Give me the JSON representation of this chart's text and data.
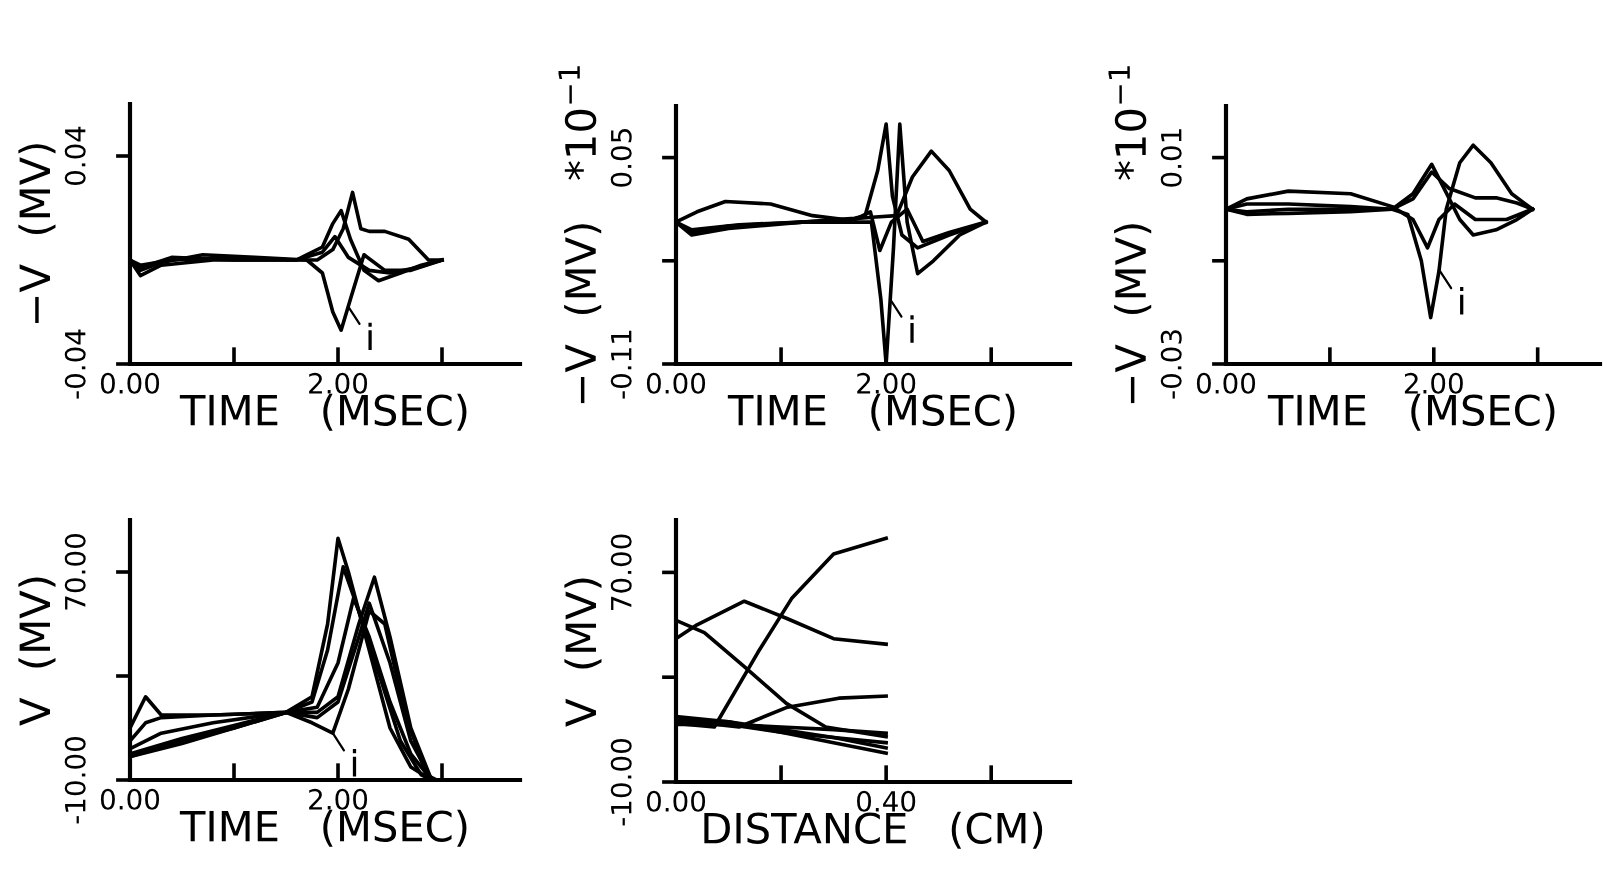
{
  "chart_data": [
    {
      "type": "line",
      "xlabel": "TIME   (MSEC)",
      "ylabel": "−V  (MV)",
      "xlim": [
        0,
        3.75
      ],
      "ylim": [
        -0.04,
        0.06
      ],
      "xticks": [
        {
          "value": 0,
          "label": "0.00"
        },
        {
          "value": 1,
          "label": null
        },
        {
          "value": 2,
          "label": "2.00"
        },
        {
          "value": 3,
          "label": null
        }
      ],
      "yticks": [
        {
          "value": -0.04,
          "label": "-0.04"
        },
        {
          "value": 0.04,
          "label": "0.04"
        }
      ],
      "annotations": [
        {
          "text": "i",
          "x": 2.1,
          "y": -0.018
        }
      ],
      "series": [
        {
          "color": "#000000",
          "x": [
            0,
            0.1,
            0.3,
            0.7,
            1.2,
            1.7,
            1.85,
            1.95,
            2.03,
            2.12,
            2.25,
            2.45,
            2.7,
            3.0
          ],
          "values": [
            0,
            -0.004,
            -0.001,
            0.002,
            0.001,
            0,
            -0.005,
            -0.02,
            -0.027,
            -0.015,
            0.002,
            -0.004,
            -0.004,
            0
          ]
        },
        {
          "color": "#000000",
          "x": [
            0,
            0.1,
            0.3,
            0.8,
            1.5,
            1.8,
            1.95,
            2.05,
            2.14,
            2.22,
            2.3,
            2.45,
            2.68,
            2.87,
            3.0
          ],
          "values": [
            0,
            -0.006,
            -0.002,
            0,
            0,
            0,
            0.004,
            0.012,
            0.026,
            0.012,
            0.011,
            0.011,
            0.008,
            0,
            0
          ]
        },
        {
          "color": "#000000",
          "x": [
            0,
            0.1,
            0.4,
            1.0,
            1.6,
            1.85,
            1.95,
            2.03,
            2.12,
            2.25,
            2.39,
            2.6,
            2.8,
            3.0
          ],
          "values": [
            0,
            -0.003,
            0.001,
            0,
            0,
            0.005,
            0.014,
            0.019,
            0.008,
            -0.004,
            -0.008,
            -0.005,
            -0.002,
            0
          ]
        },
        {
          "color": "#000000",
          "x": [
            0,
            0.1,
            0.4,
            1.0,
            1.6,
            1.85,
            1.97,
            2.1,
            2.3,
            2.5,
            2.75,
            3.0
          ],
          "values": [
            0,
            -0.002,
            0,
            0.001,
            0,
            0.003,
            0.009,
            0.001,
            -0.004,
            -0.005,
            -0.003,
            0
          ]
        }
      ]
    },
    {
      "type": "line",
      "xlabel": "TIME   (MSEC)",
      "ylabel": "−V  (MV)   *10$^{−1}$",
      "xlim": [
        0,
        3.75
      ],
      "ylim": [
        -0.11,
        0.09
      ],
      "xticks": [
        {
          "value": 0,
          "label": "0.00"
        },
        {
          "value": 1,
          "label": null
        },
        {
          "value": 2,
          "label": "2.00"
        },
        {
          "value": 3,
          "label": null
        }
      ],
      "yticks": [
        {
          "value": -0.11,
          "label": "-0.11"
        },
        {
          "value": -0.03,
          "label": null
        },
        {
          "value": 0.05,
          "label": "0.05"
        }
      ],
      "annotations": [
        {
          "text": "i",
          "x": 2.04,
          "y": -0.06
        }
      ],
      "series": [
        {
          "color": "#000000",
          "x": [
            0,
            0.15,
            0.5,
            1.2,
            1.7,
            1.86,
            1.95,
            2.0,
            2.07,
            2.13,
            2.2,
            2.3,
            2.45,
            2.7,
            2.95
          ],
          "values": [
            0,
            -0.01,
            -0.005,
            0,
            0,
            0,
            -0.06,
            -0.11,
            -0.02,
            0.076,
            0,
            -0.04,
            -0.03,
            -0.01,
            0
          ]
        },
        {
          "color": "#000000",
          "x": [
            0,
            0.15,
            0.5,
            1.2,
            1.7,
            1.8,
            1.92,
            2.0,
            2.06,
            2.15,
            2.3,
            2.6,
            2.95
          ],
          "values": [
            0,
            -0.008,
            -0.003,
            0,
            0.003,
            0.005,
            0.04,
            0.076,
            0.02,
            -0.01,
            -0.02,
            -0.01,
            0
          ]
        },
        {
          "color": "#000000",
          "x": [
            0,
            0.2,
            0.47,
            0.9,
            1.3,
            1.6,
            1.9,
            2.1,
            2.25,
            2.43,
            2.6,
            2.8,
            2.95
          ],
          "values": [
            0,
            0.008,
            0.016,
            0.014,
            0.005,
            0.002,
            0.004,
            0.005,
            0.035,
            0.055,
            0.04,
            0.01,
            0
          ]
        },
        {
          "color": "#000000",
          "x": [
            0,
            0.15,
            0.6,
            1.2,
            1.7,
            1.85,
            1.94,
            2.05,
            2.2,
            2.35,
            2.6,
            2.95
          ],
          "values": [
            0,
            -0.006,
            -0.002,
            0,
            0.002,
            0.008,
            -0.022,
            0,
            0.01,
            -0.015,
            -0.008,
            0
          ]
        }
      ]
    },
    {
      "type": "line",
      "xlabel": "TIME   (MSEC)",
      "ylabel": "−V  (MV)   *10$^{−1}$",
      "xlim": [
        0,
        3.6
      ],
      "ylim": [
        -0.03,
        0.02
      ],
      "xticks": [
        {
          "value": 0,
          "label": "0.00"
        },
        {
          "value": 1,
          "label": null
        },
        {
          "value": 2,
          "label": "2.00"
        },
        {
          "value": 3,
          "label": null
        }
      ],
      "yticks": [
        {
          "value": -0.03,
          "label": "-0.03"
        },
        {
          "value": -0.01,
          "label": null
        },
        {
          "value": 0.01,
          "label": "0.01"
        }
      ],
      "annotations": [
        {
          "text": "i",
          "x": 2.06,
          "y": -0.012
        }
      ],
      "series": [
        {
          "color": "#000000",
          "x": [
            0,
            0.2,
            0.6,
            1.2,
            1.6,
            1.75,
            1.88,
            1.97,
            2.05,
            2.12,
            2.25,
            2.38,
            2.55,
            2.75,
            2.95
          ],
          "values": [
            0,
            0.001,
            0.001,
            0.0005,
            0,
            -0.001,
            -0.01,
            -0.021,
            -0.012,
            0,
            0.009,
            0.0124,
            0.009,
            0.003,
            0
          ]
        },
        {
          "color": "#000000",
          "x": [
            0,
            0.2,
            0.6,
            1.2,
            1.6,
            1.8,
            1.94,
            2.05,
            2.2,
            2.4,
            2.7,
            2.95
          ],
          "values": [
            0,
            0.002,
            0.0035,
            0.003,
            0.0005,
            -0.002,
            -0.0075,
            -0.002,
            0.001,
            -0.002,
            -0.002,
            0
          ]
        },
        {
          "color": "#000000",
          "x": [
            0,
            0.2,
            0.6,
            1.2,
            1.6,
            1.8,
            1.98,
            2.1,
            2.25,
            2.38,
            2.6,
            2.8,
            2.95
          ],
          "values": [
            0,
            -0.001,
            -0.0008,
            -0.0005,
            0,
            0.003,
            0.0087,
            0.004,
            -0.002,
            -0.005,
            -0.004,
            -0.002,
            0
          ]
        },
        {
          "color": "#000000",
          "x": [
            0,
            0.2,
            0.6,
            1.2,
            1.6,
            1.8,
            1.98,
            2.15,
            2.4,
            2.6,
            2.8,
            2.95
          ],
          "values": [
            0,
            -0.0005,
            0,
            0,
            0,
            0.002,
            0.0072,
            0.004,
            0.0022,
            0.0022,
            0.0012,
            0
          ]
        }
      ]
    },
    {
      "type": "line",
      "xlabel": "TIME   (MSEC)",
      "ylabel": "V  (MV)",
      "xlim": [
        0,
        3.75
      ],
      "ylim": [
        -10,
        90
      ],
      "xticks": [
        {
          "value": 0,
          "label": "0.00"
        },
        {
          "value": 1,
          "label": null
        },
        {
          "value": 2,
          "label": "2.00"
        },
        {
          "value": 3,
          "label": null
        }
      ],
      "yticks": [
        {
          "value": -10,
          "label": "-10.00"
        },
        {
          "value": 30,
          "label": null
        },
        {
          "value": 70,
          "label": "70.00"
        }
      ],
      "annotations": [
        {
          "text": "i",
          "x": 1.95,
          "y": 8
        }
      ],
      "series": [
        {
          "color": "#000000",
          "x": [
            0,
            0.15,
            0.3,
            0.8,
            1.5,
            1.75,
            1.9,
            2.0,
            2.1,
            2.3,
            2.5,
            2.7,
            2.9
          ],
          "values": [
            10,
            22,
            15,
            15,
            16,
            22,
            50,
            83,
            70,
            40,
            10,
            -5,
            -10
          ]
        },
        {
          "color": "#000000",
          "x": [
            0,
            0.15,
            0.3,
            0.8,
            1.5,
            1.75,
            1.9,
            2.05,
            2.2,
            2.4,
            2.6,
            2.8,
            2.9
          ],
          "values": [
            5,
            12,
            14,
            15,
            16,
            20,
            40,
            72,
            55,
            30,
            5,
            -8,
            -10
          ]
        },
        {
          "color": "#000000",
          "x": [
            0,
            0.3,
            0.8,
            1.5,
            1.8,
            2.0,
            2.15,
            2.3,
            2.5,
            2.7,
            2.9
          ],
          "values": [
            2,
            8,
            12,
            16,
            18,
            35,
            60,
            45,
            20,
            0,
            -10
          ]
        },
        {
          "color": "#000000",
          "x": [
            0,
            0.5,
            1.0,
            1.5,
            1.8,
            2.0,
            2.2,
            2.35,
            2.5,
            2.7,
            2.9
          ],
          "values": [
            0,
            6,
            11,
            16,
            16,
            22,
            50,
            68,
            45,
            10,
            -10
          ]
        },
        {
          "color": "#000000",
          "x": [
            0,
            0.5,
            1.0,
            1.5,
            1.75,
            1.95,
            2.1,
            2.3,
            2.45,
            2.65,
            2.85,
            2.95
          ],
          "values": [
            -1,
            4,
            10,
            16,
            12,
            8,
            25,
            55,
            50,
            15,
            -8,
            -10
          ]
        },
        {
          "color": "#000000",
          "x": [
            0,
            0.5,
            1.0,
            1.5,
            1.8,
            2.0,
            2.2,
            2.3,
            2.5,
            2.7,
            2.9
          ],
          "values": [
            -1,
            5,
            10,
            16,
            14,
            20,
            45,
            58,
            35,
            5,
            -10
          ]
        }
      ]
    },
    {
      "type": "line",
      "xlabel": "DISTANCE   (CM)",
      "ylabel": "V  (MV)",
      "xlim": [
        0,
        0.75
      ],
      "ylim": [
        -10,
        90
      ],
      "xticks": [
        {
          "value": 0,
          "label": "0.00"
        },
        {
          "value": 0.2,
          "label": null
        },
        {
          "value": 0.4,
          "label": "0.40"
        },
        {
          "value": 0.6,
          "label": null
        }
      ],
      "yticks": [
        {
          "value": -10,
          "label": "-10.00"
        },
        {
          "value": 30,
          "label": null
        },
        {
          "value": 70,
          "label": "70.00"
        }
      ],
      "series": [
        {
          "color": "#000000",
          "x": [
            0,
            0.073,
            0.156,
            0.22,
            0.3,
            0.4
          ],
          "values": [
            12.4,
            11,
            39.5,
            60,
            77,
            83
          ]
        },
        {
          "color": "#000000",
          "x": [
            0,
            0.04,
            0.13,
            0.21,
            0.3,
            0.4
          ],
          "values": [
            44.7,
            50,
            59,
            52.5,
            44.7,
            42.6
          ]
        },
        {
          "color": "#000000",
          "x": [
            0,
            0.054,
            0.13,
            0.21,
            0.285,
            0.4
          ],
          "values": [
            51.7,
            47,
            34,
            20,
            11,
            7.3
          ]
        },
        {
          "color": "#000000",
          "x": [
            0,
            0.12,
            0.21,
            0.31,
            0.4
          ],
          "values": [
            13.7,
            11,
            18.4,
            22,
            22.8
          ]
        },
        {
          "color": "#000000",
          "x": [
            0,
            0.1,
            0.2,
            0.3,
            0.4
          ],
          "values": [
            13,
            12,
            9,
            7,
            5
          ]
        },
        {
          "color": "#000000",
          "x": [
            0,
            0.1,
            0.2,
            0.3,
            0.4
          ],
          "values": [
            14,
            13,
            10,
            7,
            3
          ]
        },
        {
          "color": "#000000",
          "x": [
            0,
            0.1,
            0.2,
            0.3,
            0.4
          ],
          "values": [
            12,
            12,
            11,
            10,
            8.6
          ]
        },
        {
          "color": "#000000",
          "x": [
            0,
            0.1,
            0.2,
            0.3,
            0.4
          ],
          "values": [
            15,
            13,
            9,
            5,
            1
          ]
        }
      ]
    }
  ]
}
